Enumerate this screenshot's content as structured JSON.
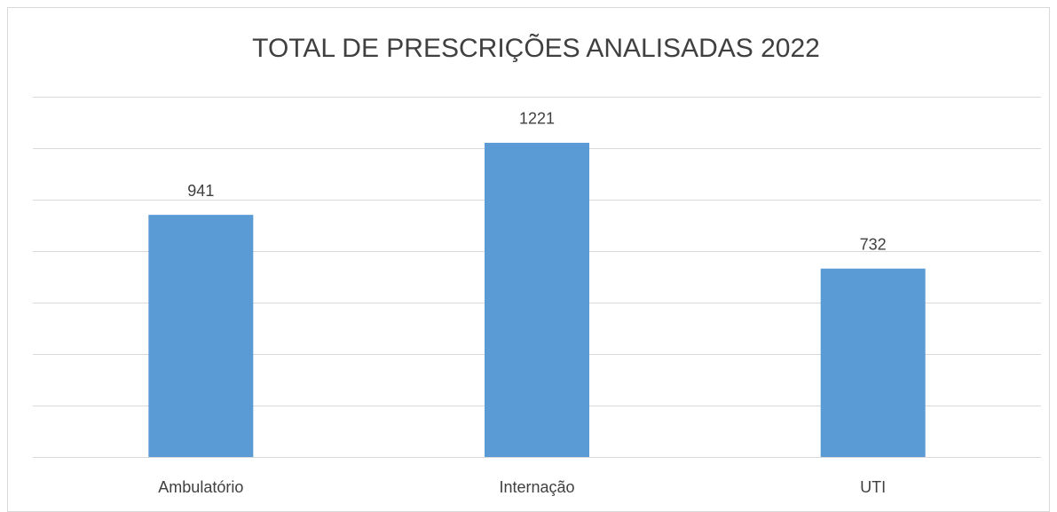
{
  "chart_data": {
    "type": "bar",
    "title": "TOTAL DE PRESCRIÇÕES ANALISADAS 2022",
    "categories": [
      "Ambulatório",
      "Internação",
      "UTI"
    ],
    "values": [
      941,
      1221,
      732
    ],
    "color": "#5b9bd5",
    "ylim": [
      0,
      1400
    ],
    "yticks": [
      0,
      200,
      400,
      600,
      800,
      1000,
      1200,
      1400
    ],
    "grid": true
  }
}
